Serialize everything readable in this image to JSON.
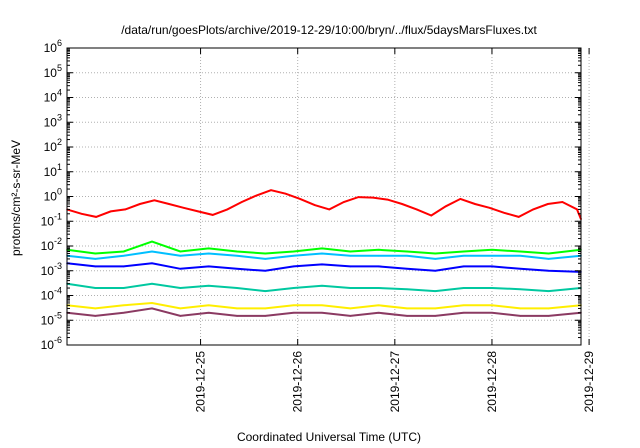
{
  "chart_data": {
    "type": "line",
    "title": "/data/run/goesPlots/archive/2019-12-29/10:00/bryn/../flux/5daysMarsFluxes.txt",
    "xlabel": "Coordinated Universal Time (UTC)",
    "ylabel": "protons/cm²-s-sr-MeV",
    "x_range": [
      "2019-12-24T03:00",
      "2019-12-29T10:00"
    ],
    "y_log": true,
    "ylim": [
      1e-06,
      1000000.0
    ],
    "grid": true,
    "x_ticks": [
      "2019-12-25",
      "2019-12-26",
      "2019-12-27",
      "2019-12-28",
      "2019-12-29"
    ],
    "y_ticks": [
      {
        "base": "10",
        "exp": "-6"
      },
      {
        "base": "10",
        "exp": "-5"
      },
      {
        "base": "10",
        "exp": "-4"
      },
      {
        "base": "10",
        "exp": "-3"
      },
      {
        "base": "10",
        "exp": "-2"
      },
      {
        "base": "10",
        "exp": "-1"
      },
      {
        "base": "10",
        "exp": "0"
      },
      {
        "base": "10",
        "exp": "1"
      },
      {
        "base": "10",
        "exp": "2"
      },
      {
        "base": "10",
        "exp": "3"
      },
      {
        "base": "10",
        "exp": "4"
      },
      {
        "base": "10",
        "exp": "5"
      },
      {
        "base": "10",
        "exp": "6"
      }
    ],
    "series": [
      {
        "color": "#ff0000",
        "x": [
          "2019-12-24T03:00",
          "2019-12-24T06:36",
          "2019-12-24T10:12",
          "2019-12-24T13:48",
          "2019-12-24T17:24",
          "2019-12-24T21:00",
          "2019-12-25T00:36",
          "2019-12-25T04:12",
          "2019-12-25T07:48",
          "2019-12-25T11:24",
          "2019-12-25T15:00",
          "2019-12-25T18:36",
          "2019-12-25T22:12",
          "2019-12-26T01:48",
          "2019-12-26T05:24",
          "2019-12-26T09:00",
          "2019-12-26T12:36",
          "2019-12-26T16:12",
          "2019-12-26T19:48",
          "2019-12-26T23:24",
          "2019-12-27T03:00",
          "2019-12-27T06:36",
          "2019-12-27T10:12",
          "2019-12-27T13:48",
          "2019-12-27T17:24",
          "2019-12-27T21:00",
          "2019-12-28T00:36",
          "2019-12-28T04:12",
          "2019-12-28T07:48",
          "2019-12-28T11:24",
          "2019-12-28T15:00",
          "2019-12-28T18:36",
          "2019-12-28T22:12",
          "2019-12-29T01:48",
          "2019-12-29T05:24",
          "2019-12-29T09:00",
          "2019-12-29T10:00"
        ],
        "y": [
          0.3,
          0.2,
          0.15,
          0.25,
          0.3,
          0.5,
          0.7,
          0.5,
          0.35,
          0.25,
          0.18,
          0.3,
          0.6,
          1.1,
          1.8,
          1.3,
          0.8,
          0.45,
          0.3,
          0.6,
          0.95,
          0.9,
          0.75,
          0.5,
          0.3,
          0.17,
          0.4,
          0.8,
          0.5,
          0.35,
          0.22,
          0.15,
          0.3,
          0.5,
          0.6,
          0.3,
          0.12
        ]
      },
      {
        "color": "#00ff00",
        "x": [
          "2019-12-24T03:00",
          "2019-12-24T10:00",
          "2019-12-24T17:00",
          "2019-12-25T00:00",
          "2019-12-25T07:00",
          "2019-12-25T14:00",
          "2019-12-25T21:00",
          "2019-12-26T04:00",
          "2019-12-26T11:00",
          "2019-12-26T18:00",
          "2019-12-27T01:00",
          "2019-12-27T08:00",
          "2019-12-27T15:00",
          "2019-12-27T22:00",
          "2019-12-28T05:00",
          "2019-12-28T12:00",
          "2019-12-28T19:00",
          "2019-12-29T02:00",
          "2019-12-29T10:00"
        ],
        "y": [
          0.007,
          0.005,
          0.006,
          0.015,
          0.006,
          0.008,
          0.006,
          0.005,
          0.006,
          0.008,
          0.006,
          0.007,
          0.006,
          0.005,
          0.006,
          0.007,
          0.006,
          0.005,
          0.007
        ]
      },
      {
        "color": "#00bfff",
        "x": [
          "2019-12-24T03:00",
          "2019-12-24T10:00",
          "2019-12-24T17:00",
          "2019-12-25T00:00",
          "2019-12-25T07:00",
          "2019-12-25T14:00",
          "2019-12-25T21:00",
          "2019-12-26T04:00",
          "2019-12-26T11:00",
          "2019-12-26T18:00",
          "2019-12-27T01:00",
          "2019-12-27T08:00",
          "2019-12-27T15:00",
          "2019-12-27T22:00",
          "2019-12-28T05:00",
          "2019-12-28T12:00",
          "2019-12-28T19:00",
          "2019-12-29T02:00",
          "2019-12-29T10:00"
        ],
        "y": [
          0.004,
          0.003,
          0.004,
          0.006,
          0.004,
          0.005,
          0.004,
          0.003,
          0.004,
          0.005,
          0.004,
          0.004,
          0.004,
          0.003,
          0.004,
          0.004,
          0.004,
          0.003,
          0.004
        ]
      },
      {
        "color": "#0000ff",
        "x": [
          "2019-12-24T03:00",
          "2019-12-24T10:00",
          "2019-12-24T17:00",
          "2019-12-25T00:00",
          "2019-12-25T07:00",
          "2019-12-25T14:00",
          "2019-12-25T21:00",
          "2019-12-26T04:00",
          "2019-12-26T11:00",
          "2019-12-26T18:00",
          "2019-12-27T01:00",
          "2019-12-27T08:00",
          "2019-12-27T15:00",
          "2019-12-27T22:00",
          "2019-12-28T05:00",
          "2019-12-28T12:00",
          "2019-12-28T19:00",
          "2019-12-29T02:00",
          "2019-12-29T10:00"
        ],
        "y": [
          0.002,
          0.0015,
          0.0015,
          0.002,
          0.0012,
          0.0015,
          0.0012,
          0.001,
          0.0015,
          0.0018,
          0.0015,
          0.0015,
          0.0012,
          0.001,
          0.0015,
          0.0015,
          0.0012,
          0.001,
          0.0009
        ]
      },
      {
        "color": "#00c8a0",
        "x": [
          "2019-12-24T03:00",
          "2019-12-24T10:00",
          "2019-12-24T17:00",
          "2019-12-25T00:00",
          "2019-12-25T07:00",
          "2019-12-25T14:00",
          "2019-12-25T21:00",
          "2019-12-26T04:00",
          "2019-12-26T11:00",
          "2019-12-26T18:00",
          "2019-12-27T01:00",
          "2019-12-27T08:00",
          "2019-12-27T15:00",
          "2019-12-27T22:00",
          "2019-12-28T05:00",
          "2019-12-28T12:00",
          "2019-12-28T19:00",
          "2019-12-29T02:00",
          "2019-12-29T10:00"
        ],
        "y": [
          0.0003,
          0.0002,
          0.0002,
          0.0003,
          0.0002,
          0.00025,
          0.0002,
          0.00015,
          0.0002,
          0.00025,
          0.0002,
          0.0002,
          0.00018,
          0.00015,
          0.0002,
          0.0002,
          0.00018,
          0.00015,
          0.0002
        ]
      },
      {
        "color": "#ffee00",
        "x": [
          "2019-12-24T03:00",
          "2019-12-24T10:00",
          "2019-12-24T17:00",
          "2019-12-25T00:00",
          "2019-12-25T07:00",
          "2019-12-25T14:00",
          "2019-12-25T21:00",
          "2019-12-26T04:00",
          "2019-12-26T11:00",
          "2019-12-26T18:00",
          "2019-12-27T01:00",
          "2019-12-27T08:00",
          "2019-12-27T15:00",
          "2019-12-27T22:00",
          "2019-12-28T05:00",
          "2019-12-28T12:00",
          "2019-12-28T19:00",
          "2019-12-29T02:00",
          "2019-12-29T10:00"
        ],
        "y": [
          4e-05,
          3e-05,
          4e-05,
          5e-05,
          3e-05,
          4e-05,
          3e-05,
          3e-05,
          4e-05,
          4e-05,
          3e-05,
          4e-05,
          3e-05,
          3e-05,
          4e-05,
          4e-05,
          3e-05,
          3e-05,
          4e-05
        ]
      },
      {
        "color": "#8b3a62",
        "x": [
          "2019-12-24T03:00",
          "2019-12-24T10:00",
          "2019-12-24T17:00",
          "2019-12-25T00:00",
          "2019-12-25T07:00",
          "2019-12-25T14:00",
          "2019-12-25T21:00",
          "2019-12-26T04:00",
          "2019-12-26T11:00",
          "2019-12-26T18:00",
          "2019-12-27T01:00",
          "2019-12-27T08:00",
          "2019-12-27T15:00",
          "2019-12-27T22:00",
          "2019-12-28T05:00",
          "2019-12-28T12:00",
          "2019-12-28T19:00",
          "2019-12-29T02:00",
          "2019-12-29T10:00"
        ],
        "y": [
          2e-05,
          1.5e-05,
          2e-05,
          3e-05,
          1.5e-05,
          2e-05,
          1.5e-05,
          1.5e-05,
          2e-05,
          2e-05,
          1.5e-05,
          2e-05,
          1.5e-05,
          1.5e-05,
          2e-05,
          2e-05,
          1.5e-05,
          1.5e-05,
          2e-05
        ]
      }
    ]
  }
}
